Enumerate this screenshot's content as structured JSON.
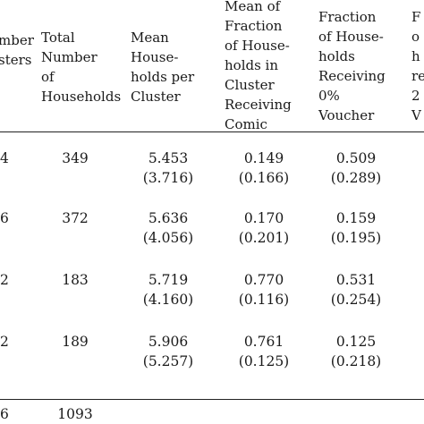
{
  "table": {
    "headers": {
      "number_clusters": "mber\nsters",
      "total_households": "Total\nNumber\nof\nHouseholds",
      "mean_households": "Mean\nHouse-\nholds per\nCluster",
      "mean_fraction_comic": "Mean of\nFraction\nof House-\nholds in\nCluster\nReceiving\nComic",
      "fraction_0_voucher": "Fraction\nof House-\nholds\nReceiving\n0%\nVoucher",
      "next_col": "F\no\nh\nre\n2\nV"
    },
    "rows": [
      {
        "clusters": "4",
        "total": "349",
        "mean": "5.453",
        "mean_sd": "(3.716)",
        "comic": "0.149",
        "comic_sd": "(0.166)",
        "voucher": "0.509",
        "voucher_sd": "(0.289)"
      },
      {
        "clusters": "6",
        "total": "372",
        "mean": "5.636",
        "mean_sd": "(4.056)",
        "comic": "0.170",
        "comic_sd": "(0.201)",
        "voucher": "0.159",
        "voucher_sd": "(0.195)"
      },
      {
        "clusters": "2",
        "total": "183",
        "mean": "5.719",
        "mean_sd": "(4.160)",
        "comic": "0.770",
        "comic_sd": "(0.116)",
        "voucher": "0.531",
        "voucher_sd": "(0.254)"
      },
      {
        "clusters": "2",
        "total": "189",
        "mean": "5.906",
        "mean_sd": "(5.257)",
        "comic": "0.761",
        "comic_sd": "(0.125)",
        "voucher": "0.125",
        "voucher_sd": "(0.218)"
      }
    ],
    "totals": {
      "clusters": "6",
      "total": "1093"
    }
  }
}
